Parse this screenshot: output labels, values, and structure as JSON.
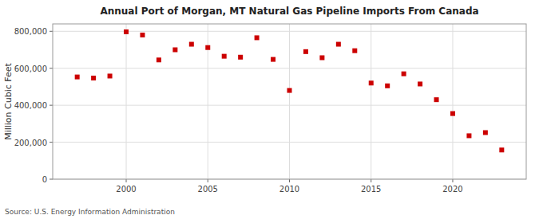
{
  "chart_data": {
    "type": "scatter",
    "title": "Annual Port of Morgan, MT Natural Gas Pipeline Imports From Canada",
    "y_label": "Million Cubic Feet",
    "source": "Source: U.S. Energy Information Administration",
    "x": [
      1997,
      1998,
      1999,
      2000,
      2001,
      2002,
      2003,
      2004,
      2005,
      2006,
      2007,
      2008,
      2009,
      2010,
      2011,
      2012,
      2013,
      2014,
      2015,
      2016,
      2017,
      2018,
      2019,
      2020,
      2021,
      2022,
      2023
    ],
    "values": [
      553000,
      547000,
      558000,
      797000,
      780000,
      645000,
      700000,
      730000,
      712000,
      665000,
      660000,
      765000,
      648000,
      480000,
      690000,
      657000,
      730000,
      695000,
      520000,
      505000,
      570000,
      515000,
      430000,
      355000,
      235000,
      252000,
      158000
    ],
    "color": "#cc0000",
    "marker": "square",
    "xlim": [
      1995.5,
      2024.5
    ],
    "xticks": [
      2000,
      2005,
      2010,
      2015,
      2020
    ],
    "ylim": [
      0,
      840000
    ],
    "yticks": [
      0,
      {
        "value": 200000,
        "label": "200,000"
      },
      {
        "value": 400000,
        "label": "400,000"
      },
      {
        "value": 600000,
        "label": "600,000"
      },
      {
        "value": 800000,
        "label": "800,000"
      }
    ],
    "grid": true
  }
}
